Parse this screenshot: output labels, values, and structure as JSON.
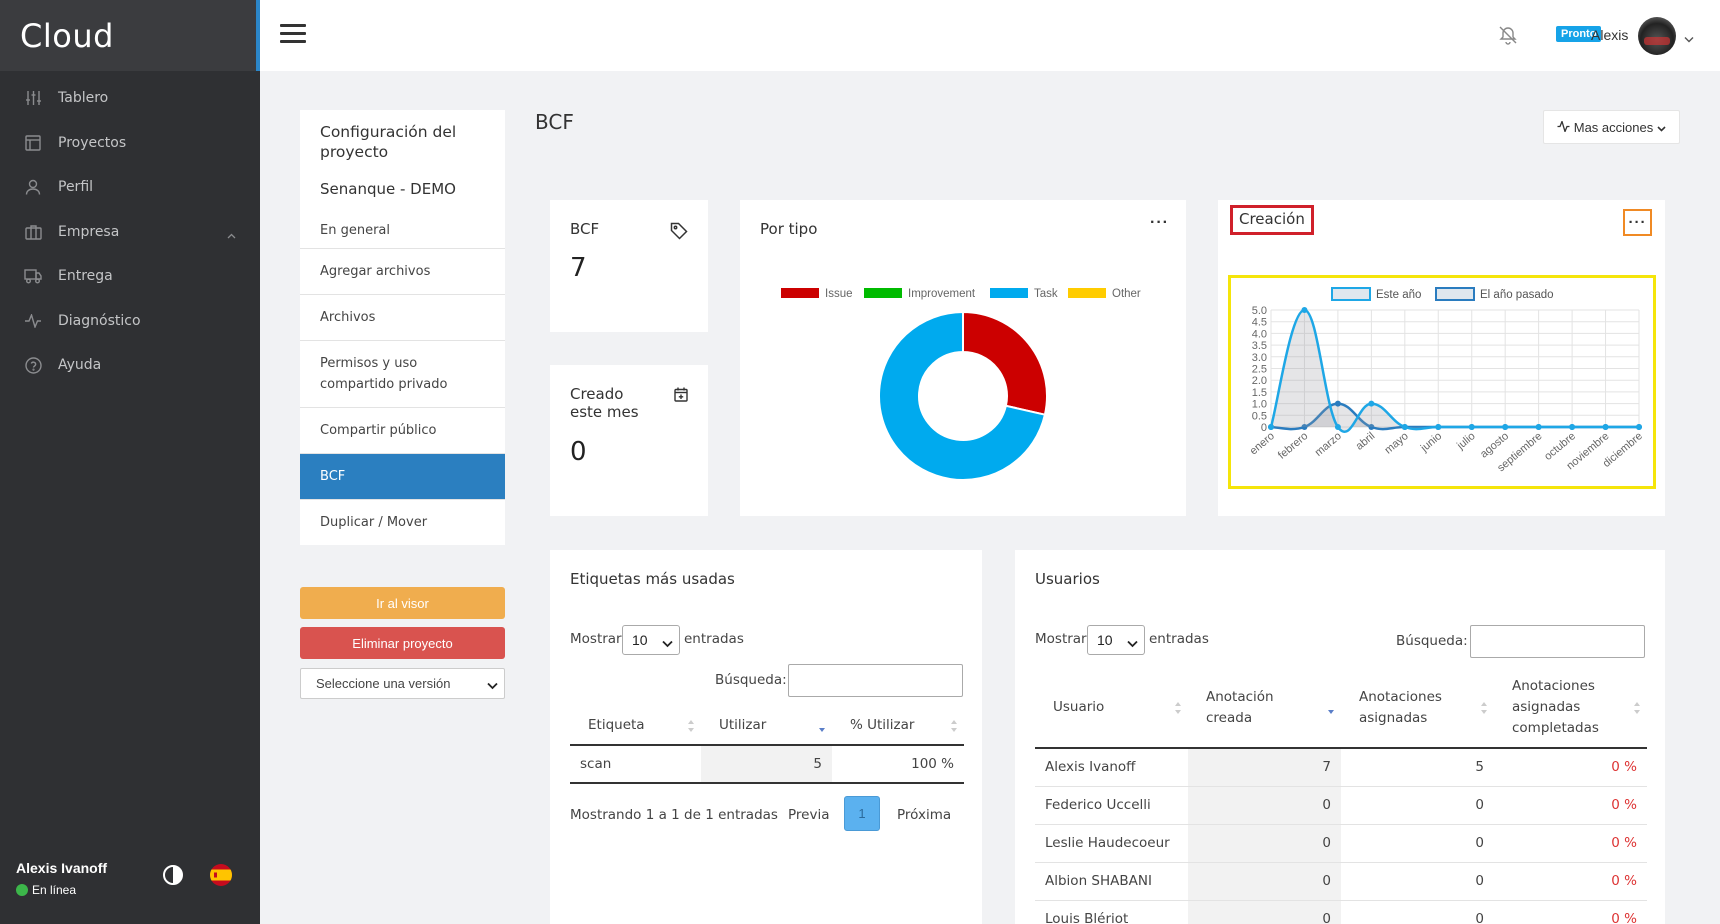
{
  "app": {
    "logo": "Cloud"
  },
  "sidebar": {
    "items": [
      {
        "label": "Tablero",
        "icon": "sliders-icon"
      },
      {
        "label": "Proyectos",
        "icon": "window-icon"
      },
      {
        "label": "Perfil",
        "icon": "user-icon"
      },
      {
        "label": "Empresa",
        "icon": "briefcase-icon"
      },
      {
        "label": "Entrega",
        "icon": "truck-icon"
      },
      {
        "label": "Diagnóstico",
        "icon": "activity-icon"
      },
      {
        "label": "Ayuda",
        "icon": "help-circle-icon"
      }
    ],
    "user": {
      "name": "Alexis Ivanoff",
      "status": "En línea",
      "status_color": "#3cb64a"
    }
  },
  "topbar": {
    "badge": "Pronto",
    "user": "Alexis"
  },
  "config": {
    "title": "Configuración del proyecto",
    "project": "Senanque - DEMO",
    "items": [
      "En general",
      "Agregar archivos",
      "Archivos",
      "Permisos y uso compartido privado",
      "Compartir público",
      "BCF",
      "Duplicar / Mover"
    ],
    "active_item": "BCF",
    "btn_visor": "Ir al visor",
    "btn_delete": "Eliminar proyecto",
    "version_select": "Seleccione una versión"
  },
  "page": {
    "title": "BCF",
    "more_actions": "Mas acciones"
  },
  "cards": {
    "bcf": {
      "label": "BCF",
      "value": "7"
    },
    "month": {
      "label": "Creado este mes",
      "value": "0"
    }
  },
  "colors": {
    "accent": "#2b7fc0",
    "sidebar_bg": "#2f3033",
    "highlight_yellow": "#f5e50a",
    "highlight_red": "#d0202a",
    "highlight_orange": "#f08a24"
  },
  "por_tipo": {
    "title": "Por tipo",
    "chart_data": {
      "type": "pie",
      "donut": true,
      "labels": [
        "Issue",
        "Improvement",
        "Task",
        "Other"
      ],
      "values": [
        2,
        0,
        5,
        0
      ],
      "colors": [
        "#cc0000",
        "#00bb00",
        "#00aaee",
        "#ffcc00"
      ],
      "legend": "top"
    }
  },
  "creacion": {
    "title": "Creación",
    "chart_data": {
      "type": "area",
      "x": [
        "enero",
        "febrero",
        "marzo",
        "abril",
        "mayo",
        "junio",
        "julio",
        "agosto",
        "septiembre",
        "octubre",
        "noviembre",
        "diciembre"
      ],
      "ylim": [
        0,
        5
      ],
      "yticks": [
        "0",
        "0.5",
        "1.0",
        "1.5",
        "2.0",
        "2.5",
        "3.0",
        "3.5",
        "4.0",
        "4.5",
        "5.0"
      ],
      "series": [
        {
          "name": "Este año",
          "values": [
            0,
            5,
            0,
            1,
            0,
            0,
            0,
            0,
            0,
            0,
            0,
            0
          ],
          "color": "#1ea7e6"
        },
        {
          "name": "El año pasado",
          "values": [
            0,
            0,
            1,
            0,
            0,
            0,
            0,
            0,
            0,
            0,
            0,
            0
          ],
          "color": "#2a7cbf"
        }
      ],
      "legend": "top",
      "grid": true
    }
  },
  "etiquetas": {
    "title": "Etiquetas más usadas",
    "show": "Mostrar",
    "entries": "entradas",
    "page_size": "10",
    "search_label": "Búsqueda:",
    "columns": [
      "Etiqueta",
      "Utilizar",
      "% Utilizar"
    ],
    "rows": [
      [
        "scan",
        "5",
        "100 %"
      ]
    ],
    "info": "Mostrando 1 a 1 de 1 entradas",
    "prev": "Previa",
    "page": "1",
    "next": "Próxima"
  },
  "usuarios": {
    "title": "Usuarios",
    "show": "Mostrar",
    "entries": "entradas",
    "page_size": "10",
    "search_label": "Búsqueda:",
    "columns": [
      "Usuario",
      "Anotación creada",
      "Anotaciones asignadas",
      "Anotaciones asignadas completadas"
    ],
    "rows": [
      [
        "Alexis Ivanoff",
        "7",
        "5",
        "0 %"
      ],
      [
        "Federico Uccelli",
        "0",
        "0",
        "0 %"
      ],
      [
        "Leslie Haudecoeur",
        "0",
        "0",
        "0 %"
      ],
      [
        "Albion SHABANI",
        "0",
        "0",
        "0 %"
      ],
      [
        "Louis Blériot",
        "0",
        "0",
        "0 %"
      ]
    ]
  }
}
